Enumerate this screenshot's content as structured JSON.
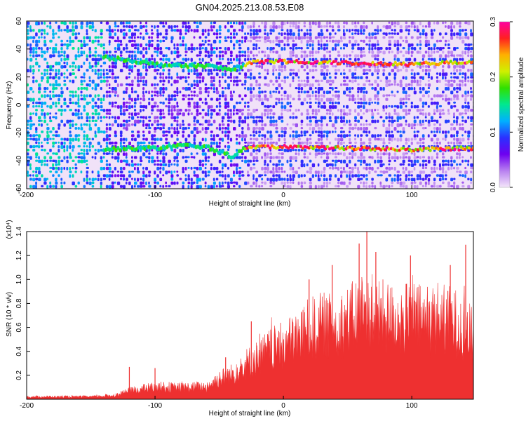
{
  "title": "GN04.2025.213.08.53.E08",
  "chart_data": [
    {
      "type": "heatmap",
      "xlabel": "Height of straight line (km)",
      "ylabel": "Frequency (Hz)",
      "xlim": [
        -200,
        148
      ],
      "ylim": [
        -60,
        60
      ],
      "x_ticks": [
        "-200",
        "-100",
        "0",
        "100"
      ],
      "y_ticks": [
        "60",
        "40",
        "20",
        "0",
        "-20",
        "-40",
        "-60"
      ],
      "colorbar": {
        "label": "Normalized spectral amplitude",
        "range": [
          0,
          0.3
        ],
        "ticks": [
          "0.0",
          "0.1",
          "0.2",
          "0.3"
        ],
        "colors": [
          "#f4e6fa",
          "#b880f0",
          "#6e00f0",
          "#2a30ff",
          "#00b0ff",
          "#00e890",
          "#30e000",
          "#d0f000",
          "#ffb000",
          "#ff2020",
          "#ff00a0"
        ]
      },
      "bands": [
        {
          "x": [
            -140,
            -120,
            -100,
            -80,
            -60,
            -40,
            -30,
            -20,
            0,
            50,
            100,
            148
          ],
          "y": [
            34,
            32,
            29,
            28,
            28,
            25,
            29,
            31,
            31,
            30,
            29,
            31
          ]
        },
        {
          "x": [
            -140,
            -120,
            -100,
            -80,
            -60,
            -40,
            -30,
            -20,
            0,
            50,
            100,
            148
          ],
          "y": [
            -32,
            -31,
            -31,
            -29,
            -30,
            -37,
            -31,
            -30,
            -30,
            -31,
            -32,
            -31
          ]
        }
      ]
    },
    {
      "type": "area",
      "xlabel": "Height of straight line (km)",
      "ylabel": "SNR (10 * v/v)",
      "y_scale_label": "(x10⁴)",
      "xlim": [
        -200,
        148
      ],
      "ylim": [
        0,
        1.4
      ],
      "x_ticks": [
        "-200",
        "-100",
        "0",
        "100"
      ],
      "y_ticks": [
        "1.4",
        "1.2",
        "1.0",
        "0.8",
        "0.6",
        "0.4",
        "0.2"
      ],
      "color": "#ee3030",
      "envelope": {
        "x": [
          -200,
          -150,
          -130,
          -120,
          -100,
          -80,
          -60,
          -50,
          -40,
          -30,
          -20,
          -10,
          0,
          10,
          20,
          30,
          40,
          50,
          60,
          70,
          80,
          90,
          100,
          110,
          120,
          130,
          140,
          148
        ],
        "y": [
          0.03,
          0.03,
          0.05,
          0.1,
          0.15,
          0.14,
          0.15,
          0.25,
          0.3,
          0.42,
          0.5,
          0.6,
          0.65,
          0.75,
          0.85,
          0.9,
          0.88,
          0.95,
          1.05,
          1.0,
          1.0,
          0.95,
          1.0,
          0.95,
          1.0,
          0.95,
          0.9,
          0.75
        ]
      },
      "peaks": [
        {
          "x": -120,
          "y": 0.27
        },
        {
          "x": -100,
          "y": 0.26
        },
        {
          "x": -45,
          "y": 0.35
        },
        {
          "x": -25,
          "y": 0.65
        },
        {
          "x": 20,
          "y": 1.0
        },
        {
          "x": 38,
          "y": 1.12
        },
        {
          "x": 59,
          "y": 1.3
        },
        {
          "x": 65,
          "y": 1.4
        },
        {
          "x": 72,
          "y": 1.23
        },
        {
          "x": 99,
          "y": 1.2
        },
        {
          "x": 130,
          "y": 1.12
        },
        {
          "x": 142,
          "y": 1.29
        }
      ]
    }
  ]
}
